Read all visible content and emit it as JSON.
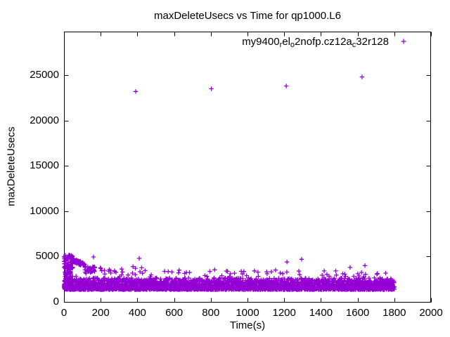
{
  "chart_data": {
    "type": "scatter",
    "title": "maxDeleteUsecs vs Time for qp1000.L6",
    "background_color": "#ffffff",
    "axis_color": "#000000",
    "grid": false,
    "legend_position": "top-right-inside",
    "x_axis": {
      "label": "Time(s)",
      "min": 0,
      "max": 2000,
      "ticks": [
        0,
        200,
        400,
        600,
        800,
        1000,
        1200,
        1400,
        1600,
        1800,
        2000
      ]
    },
    "y_axis": {
      "label": "maxDeleteUsecs",
      "min": 0,
      "max": 29800,
      "ticks": [
        0,
        5000,
        10000,
        15000,
        20000,
        25000
      ]
    },
    "series": [
      {
        "name": "my9400_rel_o2nofp.cz12a_c32r128",
        "name_segments": [
          {
            "text": "my9400",
            "sub": false
          },
          {
            "text": "r",
            "sub": true
          },
          {
            "text": "el",
            "sub": false
          },
          {
            "text": "o",
            "sub": true
          },
          {
            "text": "2nofp.cz12a",
            "sub": false
          },
          {
            "text": "c",
            "sub": true
          },
          {
            "text": "32r128",
            "sub": false
          }
        ],
        "marker": "plus",
        "color": "#9400d3",
        "outliers": [
          [
            391,
            23200
          ],
          [
            803,
            23500
          ],
          [
            1211,
            23800
          ],
          [
            1624,
            24800
          ]
        ],
        "spikes": [
          [
            8,
            5150
          ],
          [
            27,
            5150
          ],
          [
            46,
            5050
          ],
          [
            161,
            4950
          ],
          [
            410,
            4800
          ],
          [
            667,
            3250
          ],
          [
            885,
            3400
          ],
          [
            1107,
            3100
          ],
          [
            1215,
            4400
          ],
          [
            1284,
            3000
          ],
          [
            1295,
            4700
          ],
          [
            1559,
            3800
          ],
          [
            1601,
            3100
          ],
          [
            1621,
            3250
          ],
          [
            1640,
            4000
          ]
        ],
        "band_summary": {
          "t_range": [
            0,
            1800
          ],
          "typical_y_range": [
            1300,
            2900
          ],
          "sample_interval_s": 1
        },
        "generation": {
          "seed": 11,
          "band": {
            "t_min": 1,
            "t_max": 1800,
            "y_base": 1350,
            "y_span": 1300,
            "skew": 1.7,
            "pop_chance": 0.035,
            "pop_base": 2750,
            "pop_span": 800,
            "extra_chance": 0.55,
            "extra_base": 1400,
            "extra_span": 1000,
            "extra_skew": 2
          },
          "early_cluster": {
            "count": 150,
            "t_max": 48,
            "y_base": 1400,
            "y_span": 3800,
            "skew": 1.15
          },
          "decay_arc": {
            "t_min": 48,
            "t_max": 112,
            "chance": 0.8,
            "y_start": 4600,
            "slope": 8,
            "noise": 450
          },
          "decay_tail": {
            "t_min": 112,
            "t_max": 168,
            "chance": 0.45,
            "y_base": 3450,
            "noise": 800
          },
          "mid_scatter": {
            "count": 22,
            "t_min": 115,
            "t_span": 315,
            "y_base": 2950,
            "y_span": 1050
          }
        }
      }
    ]
  }
}
